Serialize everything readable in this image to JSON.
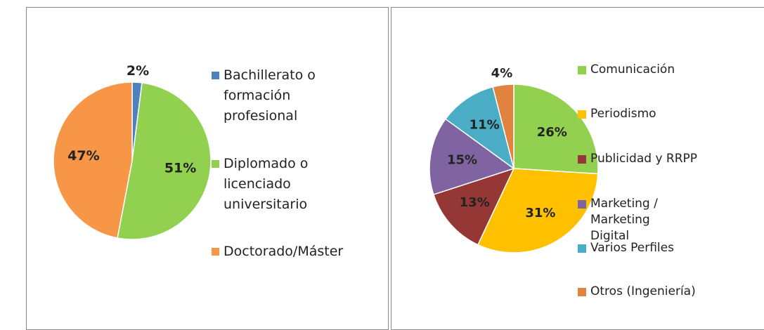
{
  "chart_data": [
    {
      "type": "pie",
      "categories": [
        "Bachillerato o formación profesional",
        "Diplomado o licenciado universitario",
        "Doctorado/Máster"
      ],
      "values": [
        2,
        51,
        47
      ],
      "value_labels": [
        "2%",
        "51%",
        "47%"
      ],
      "colors": [
        "#4f81bd",
        "#92d050",
        "#f79646"
      ]
    },
    {
      "type": "pie",
      "categories": [
        "Comunicación",
        "Periodismo",
        "Publicidad y RRPP",
        "Marketing / Marketing Digital",
        "Varios Perfiles",
        "Otros (Ingeniería)"
      ],
      "values": [
        26,
        31,
        13,
        15,
        11,
        4
      ],
      "value_labels": [
        "26%",
        "31%",
        "13%",
        "15%",
        "11%",
        "4%"
      ],
      "colors": [
        "#92d050",
        "#ffc000",
        "#953735",
        "#8064a2",
        "#4bacc6",
        "#e0833f"
      ]
    }
  ]
}
